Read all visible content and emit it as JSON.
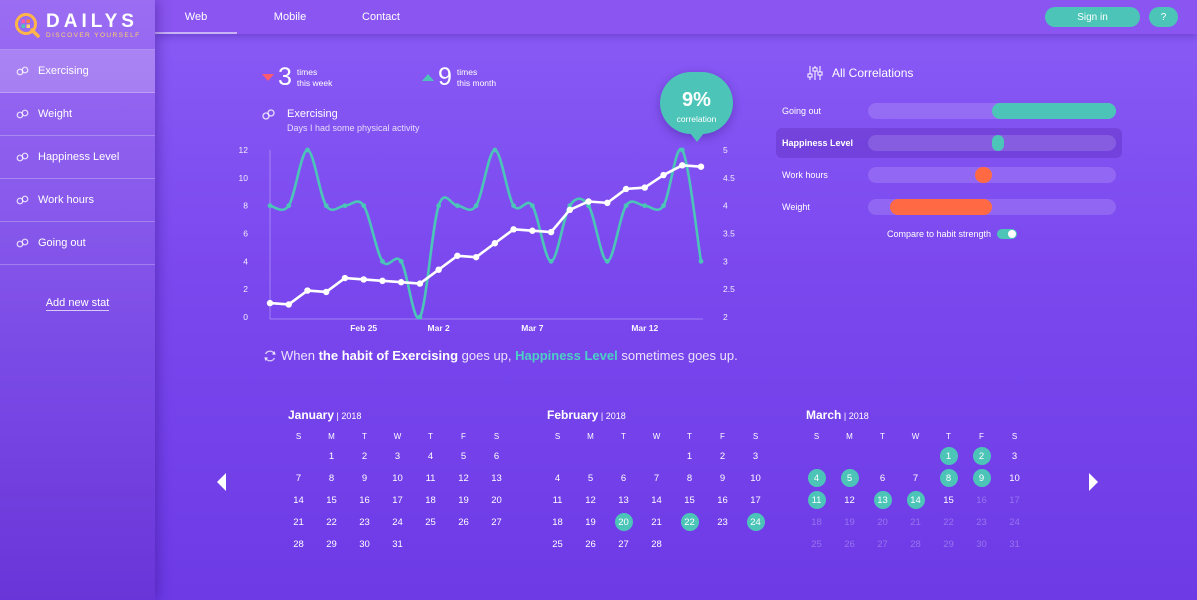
{
  "app": {
    "name": "DAILYS",
    "tagline": "DISCOVER YOURSELF"
  },
  "sidebar": {
    "items": [
      {
        "label": "Exercising",
        "active": true
      },
      {
        "label": "Weight"
      },
      {
        "label": "Happiness Level"
      },
      {
        "label": "Work hours"
      },
      {
        "label": "Going out"
      }
    ],
    "add_label": "Add new stat"
  },
  "header": {
    "tabs": [
      {
        "label": "Web",
        "active": true
      },
      {
        "label": "Mobile"
      },
      {
        "label": "Contact"
      }
    ],
    "signin_label": "Sign in",
    "help_label": "?"
  },
  "stats": {
    "week": {
      "value": "3",
      "line1": "times",
      "line2": "this week",
      "trend": "down",
      "color": "#ff5a6e"
    },
    "month": {
      "value": "9",
      "line1": "times",
      "line2": "this month",
      "trend": "up",
      "color": "#4cc5b8"
    }
  },
  "habit": {
    "title": "Exercising",
    "subtitle": "Days I had some physical activity"
  },
  "correlation_bubble": {
    "value": "9%",
    "label": "correlation"
  },
  "insight": {
    "prefix": "When",
    "habit": "the habit of Exercising",
    "middle": "goes up,",
    "stat": "Happiness Level",
    "suffix": "sometimes goes up."
  },
  "correlations": {
    "title": "All Correlations",
    "rows": [
      {
        "label": "Going out",
        "from": 0.5,
        "to": 1.0,
        "color": "#4cc5b8"
      },
      {
        "label": "Happiness Level",
        "from": 0.5,
        "to": 0.55,
        "color": "#4cc5b8",
        "active": true
      },
      {
        "label": "Work hours",
        "from": 0.43,
        "to": 0.5,
        "color": "#ff6a45"
      },
      {
        "label": "Weight",
        "from": 0.09,
        "to": 0.5,
        "color": "#ff6a45"
      }
    ],
    "compare_label": "Compare to habit strength",
    "compare_on": true
  },
  "chart_data": {
    "type": "line",
    "x_tick_labels": [
      "Feb 25",
      "Mar 2",
      "Mar 7",
      "Mar 12"
    ],
    "x_tick_index": [
      5,
      9,
      14,
      20
    ],
    "y_left": {
      "ticks": [
        0,
        2,
        4,
        6,
        8,
        10,
        12
      ],
      "ylim": [
        0,
        12
      ]
    },
    "y_right": {
      "ticks": [
        2,
        2.5,
        3,
        3.5,
        4,
        4.5,
        5
      ],
      "ylim": [
        2,
        5
      ]
    },
    "series": [
      {
        "axis": "left",
        "color": "#ffffff",
        "style": "line-with-markers",
        "values": [
          1.0,
          0.9,
          1.9,
          1.8,
          2.8,
          2.7,
          2.6,
          2.5,
          2.4,
          3.4,
          4.4,
          4.3,
          5.3,
          6.3,
          6.2,
          6.1,
          7.7,
          8.3,
          8.2,
          9.2,
          9.3,
          10.2,
          10.9,
          10.8
        ]
      },
      {
        "axis": "right",
        "color": "#4cc5b8",
        "style": "smooth-line",
        "values": [
          4,
          4,
          5,
          4,
          4,
          4,
          3,
          3,
          2,
          4,
          4,
          4,
          5,
          4,
          4,
          3,
          4,
          4,
          3,
          4,
          4,
          4,
          5,
          3
        ]
      }
    ]
  },
  "calendars": [
    {
      "month": "January",
      "year": "2018",
      "weekdays": [
        "S",
        "M",
        "T",
        "W",
        "T",
        "F",
        "S"
      ],
      "lead": 1,
      "days": 31,
      "highlight": [],
      "dim_from": null
    },
    {
      "month": "February",
      "year": "2018",
      "weekdays": [
        "S",
        "M",
        "T",
        "W",
        "T",
        "F",
        "S"
      ],
      "lead": 4,
      "days": 28,
      "highlight": [
        20,
        22,
        24
      ],
      "dim_from": null
    },
    {
      "month": "March",
      "year": "2018",
      "weekdays": [
        "S",
        "M",
        "T",
        "W",
        "T",
        "F",
        "S"
      ],
      "lead": 4,
      "days": 31,
      "highlight": [
        1,
        2,
        4,
        5,
        8,
        9,
        11,
        13,
        14
      ],
      "dim_from": 16
    }
  ]
}
